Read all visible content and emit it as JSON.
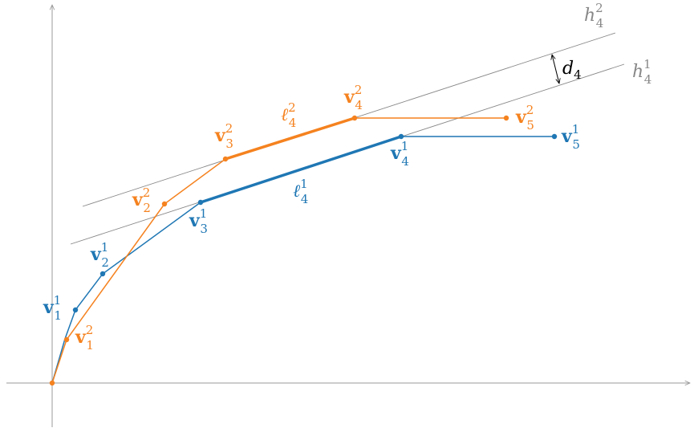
{
  "colors": {
    "blue": "#1f77b4",
    "orange": "#f5821f",
    "gray": "#888888",
    "axis": "#999999",
    "black": "#000000"
  },
  "labels": {
    "v1_1": {
      "base": "v",
      "sub": "1",
      "sup": "1"
    },
    "v1_2": {
      "base": "v",
      "sub": "2",
      "sup": "1"
    },
    "v1_3": {
      "base": "v",
      "sub": "3",
      "sup": "1"
    },
    "v1_4": {
      "base": "v",
      "sub": "4",
      "sup": "1"
    },
    "v1_5": {
      "base": "v",
      "sub": "5",
      "sup": "1"
    },
    "v2_1": {
      "base": "v",
      "sub": "1",
      "sup": "2"
    },
    "v2_2": {
      "base": "v",
      "sub": "2",
      "sup": "2"
    },
    "v2_3": {
      "base": "v",
      "sub": "3",
      "sup": "2"
    },
    "v2_4": {
      "base": "v",
      "sub": "4",
      "sup": "2"
    },
    "v2_5": {
      "base": "v",
      "sub": "5",
      "sup": "2"
    },
    "l1_4": {
      "base": "ℓ",
      "sub": "4",
      "sup": "1"
    },
    "l2_4": {
      "base": "ℓ",
      "sub": "4",
      "sup": "2"
    },
    "h1_4": {
      "base": "h",
      "sub": "4",
      "sup": "1"
    },
    "h2_4": {
      "base": "h",
      "sub": "4",
      "sup": "2"
    },
    "d4": {
      "base": "d",
      "sub": "4"
    }
  }
}
